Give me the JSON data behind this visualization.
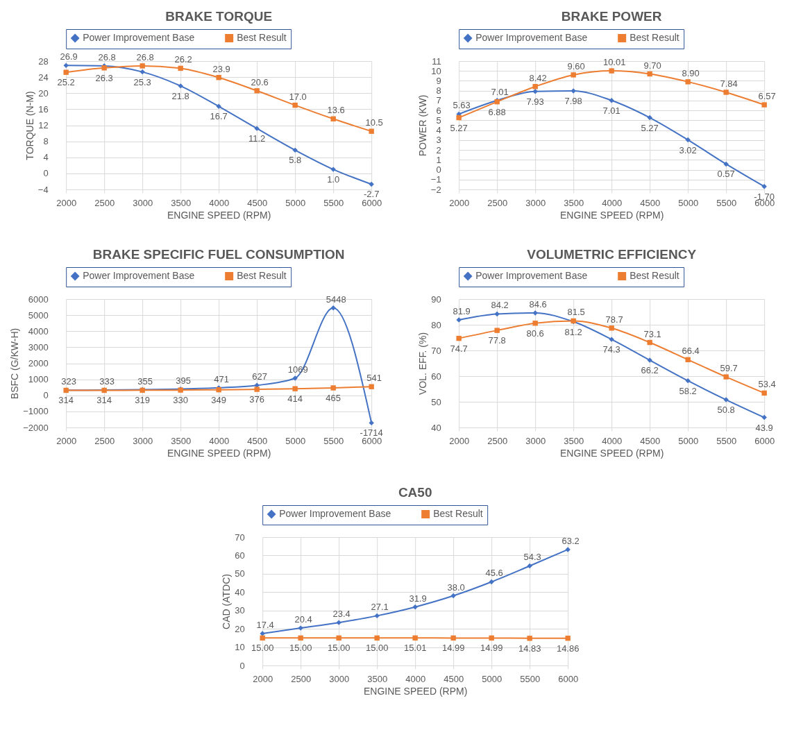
{
  "chart_data": [
    {
      "type": "line",
      "title": "BRAKE TORQUE",
      "xlabel": "ENGINE SPEED (RPM)",
      "ylabel": "TORQUE (N-M)",
      "x": [
        2000,
        2500,
        3000,
        3500,
        4000,
        4500,
        5000,
        5500,
        6000
      ],
      "xlim": [
        2000,
        6000
      ],
      "xticks": [
        2000,
        2500,
        3000,
        3500,
        4000,
        4500,
        5000,
        5500,
        6000
      ],
      "ylim": [
        -4,
        28
      ],
      "yticks": [
        -4,
        0,
        4,
        8,
        12,
        16,
        20,
        24,
        28
      ],
      "grid": true,
      "legend": "top",
      "series": [
        {
          "name": "Power Improvement Base",
          "color": "#4472c4",
          "marker": "diamond",
          "values": [
            26.9,
            26.8,
            25.3,
            21.8,
            16.7,
            11.2,
            5.8,
            1.0,
            -2.7
          ],
          "value_labels": [
            "26.9",
            "26.8",
            "25.3",
            "21.8",
            "16.7",
            "11.2",
            "5.8",
            "1.0",
            "-2.7"
          ]
        },
        {
          "name": "Best Result",
          "color": "#ed7d31",
          "marker": "square",
          "values": [
            25.2,
            26.3,
            26.8,
            26.2,
            23.9,
            20.6,
            17.0,
            13.6,
            10.5
          ],
          "value_labels": [
            "25.2",
            "26.3",
            "26.8",
            "26.2",
            "23.9",
            "20.6",
            "17.0",
            "13.6",
            "10.5"
          ]
        }
      ]
    },
    {
      "type": "line",
      "title": "BRAKE POWER",
      "xlabel": "ENGINE SPEED (RPM)",
      "ylabel": "POWER (KW)",
      "x": [
        2000,
        2500,
        3000,
        3500,
        4000,
        4500,
        5000,
        5500,
        6000
      ],
      "xlim": [
        2000,
        6000
      ],
      "xticks": [
        2000,
        2500,
        3000,
        3500,
        4000,
        4500,
        5000,
        5500,
        6000
      ],
      "ylim": [
        -2,
        11
      ],
      "yticks": [
        -2,
        -1,
        0,
        1,
        2,
        3,
        4,
        5,
        6,
        7,
        8,
        9,
        10,
        11
      ],
      "grid": true,
      "legend": "top",
      "series": [
        {
          "name": "Power Improvement Base",
          "color": "#4472c4",
          "marker": "diamond",
          "values": [
            5.63,
            7.01,
            7.93,
            7.98,
            7.01,
            5.27,
            3.02,
            0.57,
            -1.7
          ],
          "value_labels": [
            "5.63",
            "7.01",
            "7.93",
            "7.98",
            "7.01",
            "5.27",
            "3.02",
            "0.57",
            "-1.70"
          ]
        },
        {
          "name": "Best Result",
          "color": "#ed7d31",
          "marker": "square",
          "values": [
            5.27,
            6.88,
            8.42,
            9.6,
            10.01,
            9.7,
            8.9,
            7.84,
            6.57
          ],
          "value_labels": [
            "5.27",
            "6.88",
            "8.42",
            "9.60",
            "10.01",
            "9.70",
            "8.90",
            "7.84",
            "6.57"
          ]
        }
      ]
    },
    {
      "type": "line",
      "title": "BRAKE SPECIFIC FUEL CONSUMPTION",
      "xlabel": "ENGINE SPEED (RPM)",
      "ylabel": "BSFC (G/KW-H)",
      "x": [
        2000,
        2500,
        3000,
        3500,
        4000,
        4500,
        5000,
        5500,
        6000
      ],
      "xlim": [
        2000,
        6000
      ],
      "xticks": [
        2000,
        2500,
        3000,
        3500,
        4000,
        4500,
        5000,
        5500,
        6000
      ],
      "ylim": [
        -2000,
        6000
      ],
      "yticks": [
        -2000,
        -1000,
        0,
        1000,
        2000,
        3000,
        4000,
        5000,
        6000
      ],
      "grid": true,
      "legend": "top",
      "series": [
        {
          "name": "Power Improvement Base",
          "color": "#4472c4",
          "marker": "diamond",
          "values": [
            323,
            333,
            355,
            395,
            471,
            627,
            1069,
            5448,
            -1714
          ],
          "value_labels": [
            "323",
            "333",
            "355",
            "395",
            "471",
            "627",
            "1069",
            "5448",
            "-1714"
          ]
        },
        {
          "name": "Best Result",
          "color": "#ed7d31",
          "marker": "square",
          "values": [
            314,
            314,
            319,
            330,
            349,
            376,
            414,
            465,
            541
          ],
          "value_labels": [
            "314",
            "314",
            "319",
            "330",
            "349",
            "376",
            "414",
            "465",
            "541"
          ]
        }
      ]
    },
    {
      "type": "line",
      "title": "VOLUMETRIC EFFICIENCY",
      "xlabel": "ENGINE SPEED (RPM)",
      "ylabel": "VOL. EFF. (%)",
      "x": [
        2000,
        2500,
        3000,
        3500,
        4000,
        4500,
        5000,
        5500,
        6000
      ],
      "xlim": [
        2000,
        6000
      ],
      "xticks": [
        2000,
        2500,
        3000,
        3500,
        4000,
        4500,
        5000,
        5500,
        6000
      ],
      "ylim": [
        40,
        90
      ],
      "yticks": [
        40,
        50,
        60,
        70,
        80,
        90
      ],
      "grid": true,
      "legend": "top",
      "series": [
        {
          "name": "Power Improvement Base",
          "color": "#4472c4",
          "marker": "diamond",
          "values": [
            81.9,
            84.2,
            84.6,
            81.2,
            74.3,
            66.2,
            58.2,
            50.8,
            43.9
          ],
          "value_labels": [
            "81.9",
            "84.2",
            "84.6",
            "81.2",
            "74.3",
            "66.2",
            "58.2",
            "50.8",
            "43.9"
          ]
        },
        {
          "name": "Best Result",
          "color": "#ed7d31",
          "marker": "square",
          "values": [
            74.7,
            77.8,
            80.6,
            81.5,
            78.7,
            73.1,
            66.4,
            59.7,
            53.4
          ],
          "value_labels": [
            "74.7",
            "77.8",
            "80.6",
            "81.5",
            "78.7",
            "73.1",
            "66.4",
            "59.7",
            "53.4"
          ]
        }
      ]
    },
    {
      "type": "line",
      "title": "CA50",
      "xlabel": "ENGINE SPEED (RPM)",
      "ylabel": "CAD (ATDC)",
      "x": [
        2000,
        2500,
        3000,
        3500,
        4000,
        4500,
        5000,
        5500,
        6000
      ],
      "xlim": [
        2000,
        6000
      ],
      "xticks": [
        2000,
        2500,
        3000,
        3500,
        4000,
        4500,
        5000,
        5500,
        6000
      ],
      "ylim": [
        0,
        70
      ],
      "yticks": [
        0,
        10,
        20,
        30,
        40,
        50,
        60,
        70
      ],
      "grid": true,
      "legend": "top",
      "series": [
        {
          "name": "Power Improvement Base",
          "color": "#4472c4",
          "marker": "diamond",
          "values": [
            17.4,
            20.4,
            23.4,
            27.1,
            31.9,
            38.0,
            45.6,
            54.3,
            63.2
          ],
          "value_labels": [
            "17.4",
            "20.4",
            "23.4",
            "27.1",
            "31.9",
            "38.0",
            "45.6",
            "54.3",
            "63.2"
          ]
        },
        {
          "name": "Best Result",
          "color": "#ed7d31",
          "marker": "square",
          "values": [
            15.0,
            15.0,
            15.0,
            15.0,
            15.01,
            14.99,
            14.99,
            14.83,
            14.86
          ],
          "value_labels": [
            "15.00",
            "15.00",
            "15.00",
            "15.00",
            "15.01",
            "14.99",
            "14.99",
            "14.83",
            "14.86"
          ]
        }
      ]
    }
  ]
}
